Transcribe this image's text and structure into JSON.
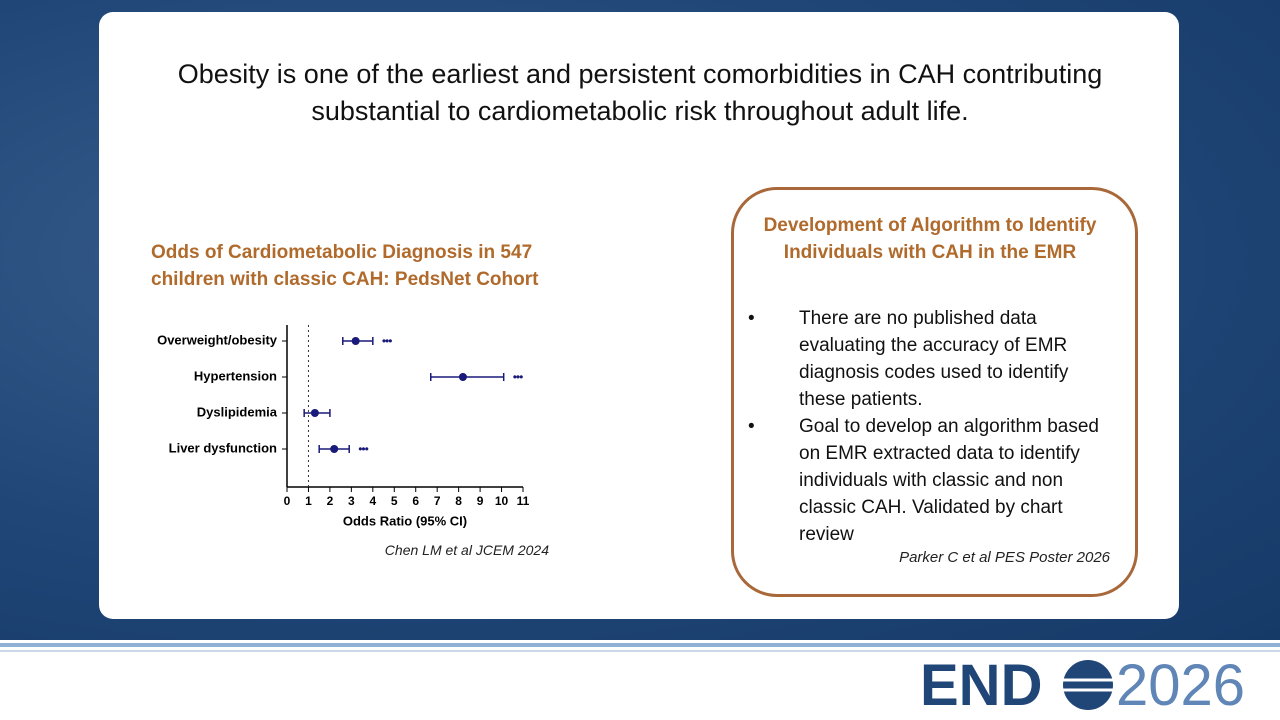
{
  "title": "Obesity is one of the earliest and persistent comorbidities in CAH contributing substantial to cardiometabolic risk throughout adult life.",
  "chart_data": {
    "type": "forest",
    "title": "Odds of Cardiometabolic Diagnosis in 547 children with classic CAH: PedsNet Cohort",
    "categories": [
      "Overweight/obesity",
      "Hypertension",
      "Dyslipidemia",
      "Liver dysfunction"
    ],
    "values": [
      3.2,
      8.2,
      1.3,
      2.2
    ],
    "ci_low": [
      2.6,
      6.7,
      0.8,
      1.5
    ],
    "ci_high": [
      4.0,
      10.1,
      2.0,
      2.9
    ],
    "significance": [
      "•••",
      "•••",
      null,
      "•••"
    ],
    "reference": 1,
    "color": "#1a1a7a",
    "xlabel": "Odds Ratio (95% CI)",
    "xlim": [
      0,
      11
    ],
    "xticks": [
      0,
      1,
      2,
      3,
      4,
      5,
      6,
      7,
      8,
      9,
      10,
      11
    ]
  },
  "chart_citation": "Chen LM et al JCEM 2024",
  "box": {
    "title": "Development of Algorithm to Identify Individuals with CAH in the EMR",
    "bullets": [
      "There are no published data evaluating the accuracy of EMR diagnosis codes used to identify these patients.",
      "Goal to develop an algorithm based on EMR extracted data to identify individuals with classic and non classic CAH. Validated by chart review"
    ],
    "bullet_symbol": "•",
    "citation": "Parker C et al PES Poster 2026"
  },
  "logo": {
    "left": "END",
    "right": "2026"
  }
}
